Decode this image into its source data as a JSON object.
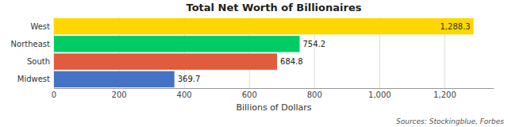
{
  "chart_data": {
    "type": "bar",
    "orientation": "horizontal",
    "title": "Total Net Worth of Billionaires",
    "categories": [
      "Midwest",
      "South",
      "Northeast",
      "West"
    ],
    "values": [
      369.7,
      684.8,
      754.2,
      1288.3
    ],
    "value_labels": [
      "369.7",
      "684.8",
      "754.2",
      "1,288.3"
    ],
    "data_labels": true,
    "colors": [
      "#4472C4",
      "#E05C3A",
      "#00CC66",
      "#FFD700"
    ],
    "x_label": "Billions of Dollars",
    "xlim": [
      0,
      1350
    ],
    "xticks": [
      0,
      200,
      400,
      600,
      800,
      {
        "value": 1000,
        "label": "1,000"
      },
      {
        "value": 1200,
        "label": "1,200"
      }
    ],
    "grid": true,
    "annotations": [
      "Sources: Stockingblue, Forbes"
    ]
  }
}
